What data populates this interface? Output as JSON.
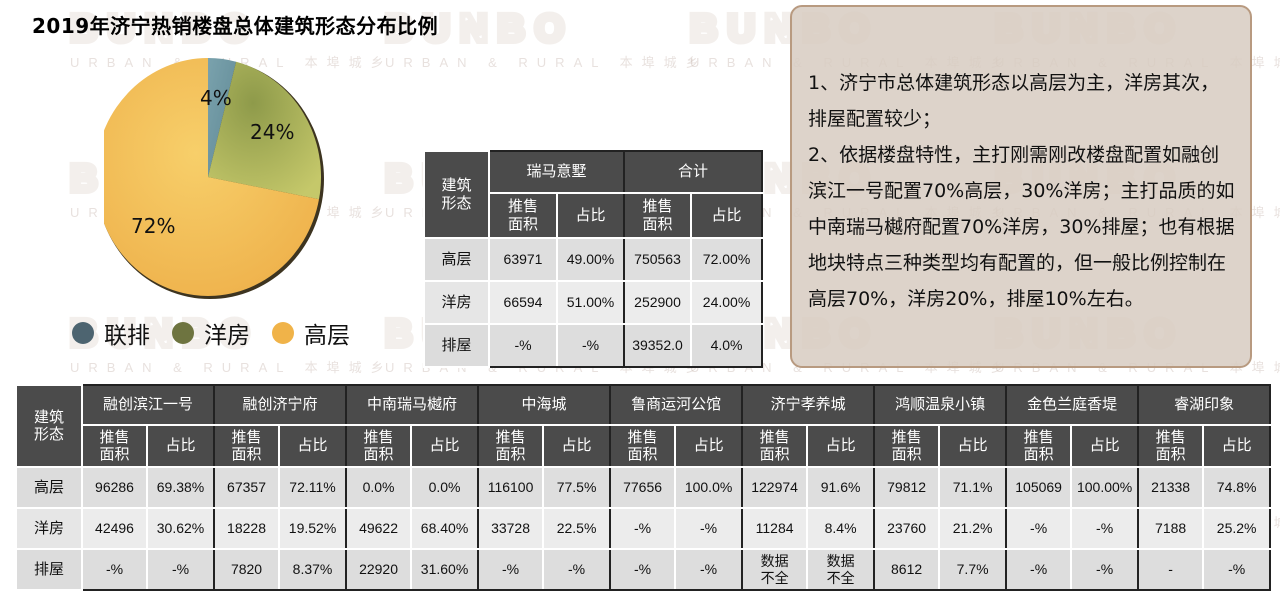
{
  "title": "2019年济宁热销楼盘总体建筑形态分布比例",
  "watermark": {
    "logo": "BUNBO",
    "sub": "URBAN & RURAL 本埠城乡"
  },
  "colors": {
    "lianpai": "#6f97a3",
    "yangfang": "#a9b25a",
    "gaoceng": "#f2bb55",
    "legend_lianpai": "#4d6470",
    "legend_yangfang": "#6e7440",
    "legend_gaoceng": "#f0b349",
    "header_bg": "#4b4b4b",
    "note_bg": "#d7cbc1",
    "note_border": "#b89a80"
  },
  "chart_data": {
    "type": "pie",
    "title": "2019年济宁热销楼盘总体建筑形态分布比例",
    "categories": [
      "联排",
      "洋房",
      "高层"
    ],
    "values": [
      4,
      24,
      72
    ],
    "labels": [
      "4%",
      "24%",
      "72%"
    ],
    "legend_position": "bottom",
    "colors": [
      "#6f97a3",
      "#a9b25a",
      "#f2bb55"
    ]
  },
  "legend": [
    {
      "label": "联排"
    },
    {
      "label": "洋房"
    },
    {
      "label": "高层"
    }
  ],
  "pie_labels": {
    "lianpai": "4%",
    "yangfang": "24%",
    "gaoceng": "72%"
  },
  "summary_table": {
    "corner": "建筑形态",
    "groups": [
      "瑞马意墅",
      "合计"
    ],
    "subheaders": [
      "推售面积",
      "占比"
    ],
    "rows": [
      {
        "label": "高层",
        "cells": [
          "63971",
          "49.00%",
          "750563",
          "72.00%"
        ]
      },
      {
        "label": "洋房",
        "cells": [
          "66594",
          "51.00%",
          "252900",
          "24.00%"
        ]
      },
      {
        "label": "排屋",
        "cells": [
          "-%",
          "-%",
          "39352.0",
          "4.0%"
        ]
      }
    ]
  },
  "note": {
    "paragraphs": [
      "1、济宁市总体建筑形态以高层为主，洋房其次，排屋配置较少；",
      "2、依据楼盘特性，主打刚需刚改楼盘配置如融创滨江一号配置70%高层，30%洋房；主打品质的如中南瑞马樾府配置70%洋房，30%排屋；也有根据地块特点三种类型均有配置的，但一般比例控制在高层70%，洋房20%，排屋10%左右。"
    ]
  },
  "detail_table": {
    "corner": "建筑形态",
    "subheaders": [
      "推售面积",
      "占比"
    ],
    "groups": [
      "融创滨江一号",
      "融创济宁府",
      "中南瑞马樾府",
      "中海城",
      "鲁商运河公馆",
      "济宁孝养城",
      "鸿顺温泉小镇",
      "金色兰庭香堤",
      "睿湖印象"
    ],
    "rows": [
      {
        "label": "高层",
        "cells": [
          "96286",
          "69.38%",
          "67357",
          "72.11%",
          "0.0%",
          "0.0%",
          "116100",
          "77.5%",
          "77656",
          "100.0%",
          "122974",
          "91.6%",
          "79812",
          "71.1%",
          "105069",
          "100.00%",
          "21338",
          "74.8%"
        ]
      },
      {
        "label": "洋房",
        "cells": [
          "42496",
          "30.62%",
          "18228",
          "19.52%",
          "49622",
          "68.40%",
          "33728",
          "22.5%",
          "-%",
          "-%",
          "11284",
          "8.4%",
          "23760",
          "21.2%",
          "-%",
          "-%",
          "7188",
          "25.2%"
        ]
      },
      {
        "label": "排屋",
        "cells": [
          "-%",
          "-%",
          "7820",
          "8.37%",
          "22920",
          "31.60%",
          "-%",
          "-%",
          "-%",
          "-%",
          "数据不全",
          "数据不全",
          "8612",
          "7.7%",
          "-%",
          "-%",
          "-",
          "-%"
        ]
      }
    ]
  }
}
